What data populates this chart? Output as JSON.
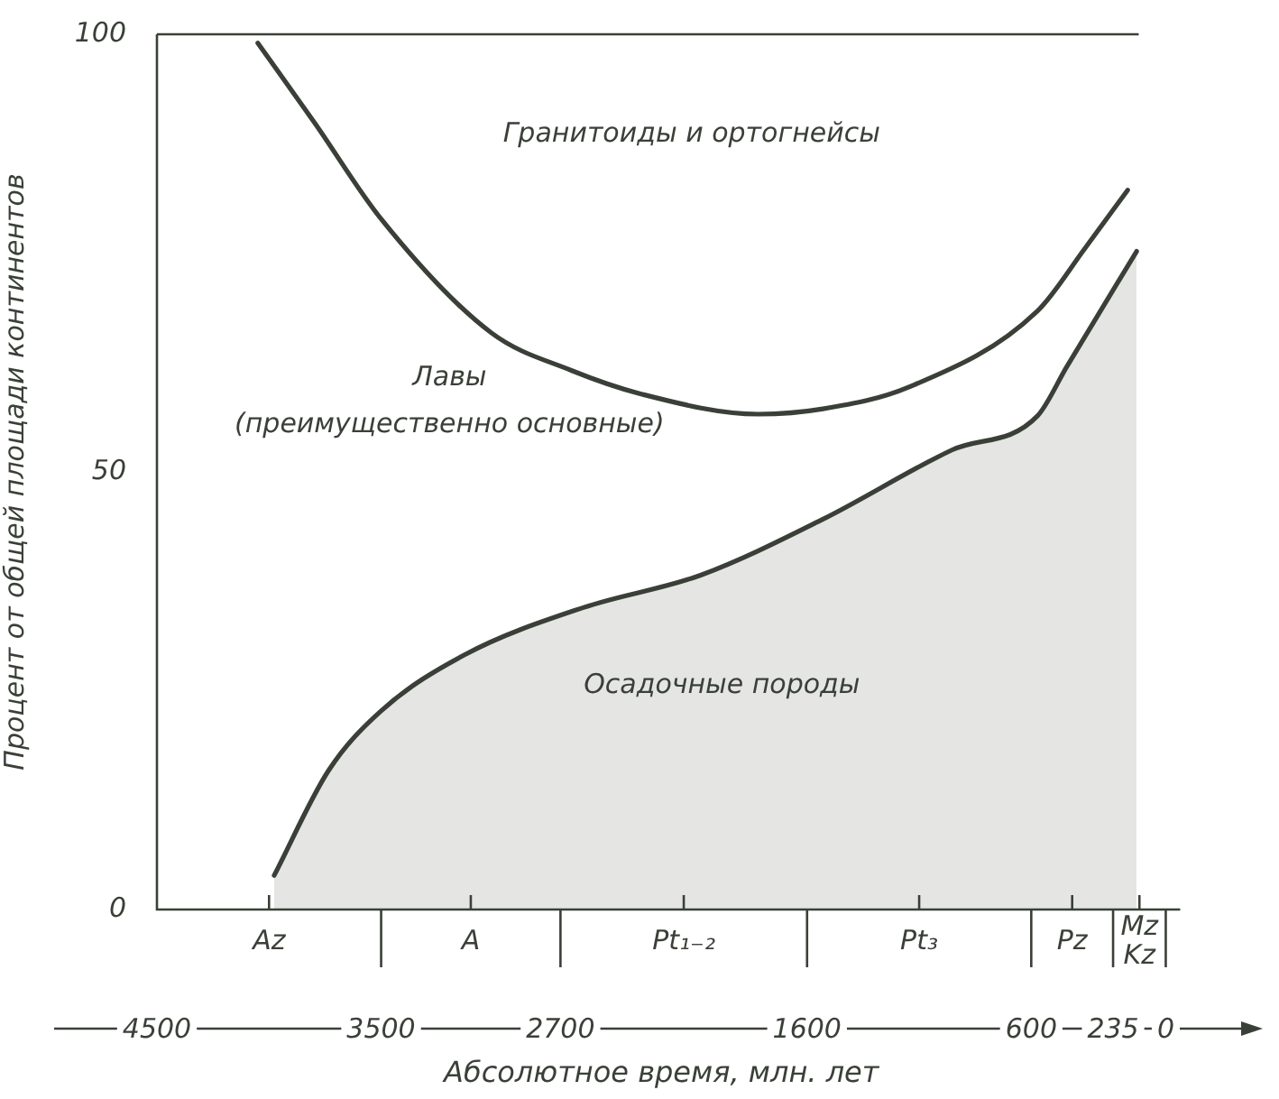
{
  "chart_data": {
    "type": "line",
    "xlabel": "Абсолютное время, млн. лет",
    "ylabel": "Процент от общей площади континентов",
    "xlim": [
      4500,
      0
    ],
    "xticks": [
      4500,
      3500,
      2700,
      1600,
      600,
      235,
      0
    ],
    "ylim": [
      0,
      100
    ],
    "yticks": [
      0,
      50,
      100
    ],
    "grid": false,
    "legend": false,
    "marker": "none",
    "line_style": "solid",
    "series": [
      {
        "type": "line",
        "color": "#3a4038",
        "x": [
          4050,
          3797,
          3500,
          3009,
          2652,
          2340,
          1817,
          1529,
          1145,
          572,
          359,
          170
        ],
        "values": [
          99,
          89.9,
          78.9,
          65.9,
          61.6,
          58.9,
          56.6,
          57.2,
          59.7,
          68.4,
          75.6,
          82.2
        ]
      },
      {
        "type": "area",
        "color": "#3a4038",
        "x": [
          3977,
          3734,
          3500,
          3128,
          2598,
          2075,
          1529,
          954,
          572,
          442,
          130
        ],
        "values": [
          3.9,
          15.9,
          22.7,
          29.1,
          34.5,
          38.2,
          44.6,
          52.5,
          56.4,
          62,
          75.2
        ]
      }
    ],
    "ref_lines": [
      {
        "axis": "y",
        "value": 100,
        "color": "#3a4038"
      }
    ],
    "annotations": [
      "Гранитоиды и ортогнейсы",
      "Лавы\n(преимущественно основные)",
      "Осадочные породы",
      "Az",
      "A",
      "Pt₁₋₂",
      "Pt₃",
      "Pz",
      "Mz Kz"
    ]
  }
}
